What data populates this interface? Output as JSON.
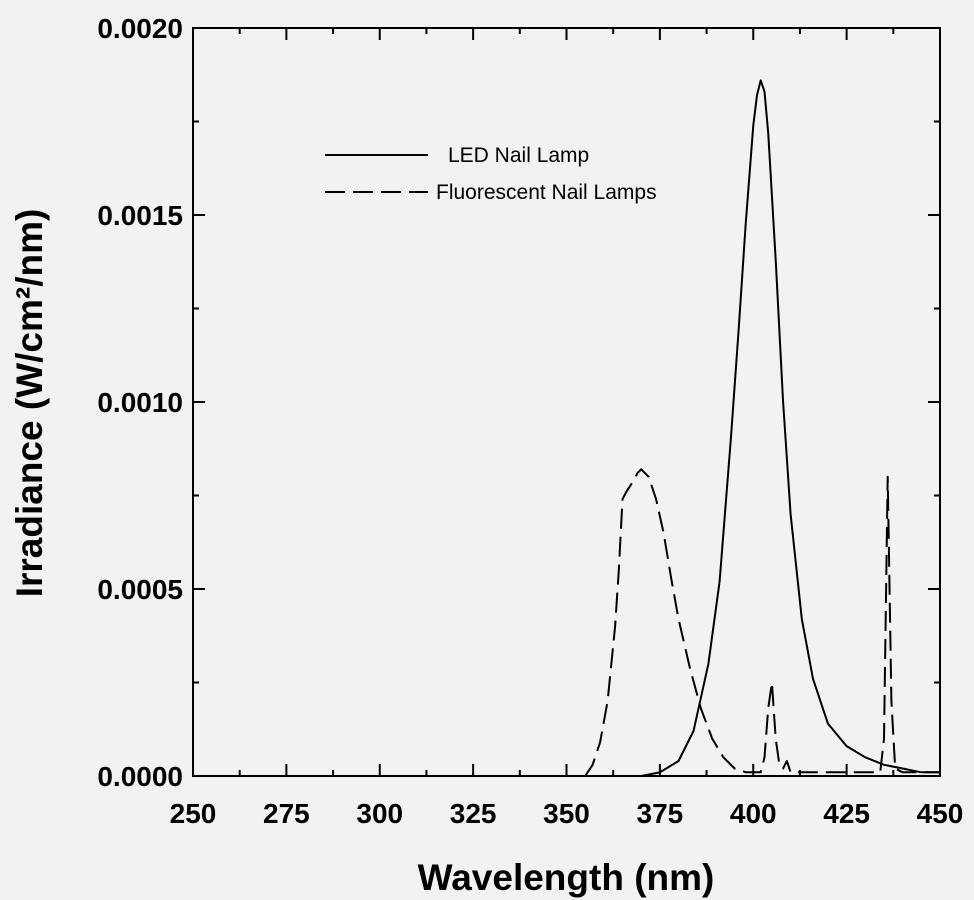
{
  "chart_data": {
    "type": "line",
    "xlabel": "Wavelength (nm)",
    "ylabel": "Irradiance (W/cm²/nm)",
    "xlim": [
      250,
      450
    ],
    "ylim": [
      0,
      0.002
    ],
    "x_ticks": [
      "250",
      "275",
      "300",
      "325",
      "350",
      "375",
      "400",
      "425",
      "450"
    ],
    "y_ticks": [
      "0.0000",
      "0.0005",
      "0.0010",
      "0.0015",
      "0.0020"
    ],
    "legend_position": "top-center",
    "grid": false,
    "series": [
      {
        "name": "LED Nail Lamp",
        "style": "solid",
        "x": [
          360,
          370,
          375,
          380,
          384,
          388,
          391,
          394,
          396,
          398,
          400,
          401,
          402,
          403,
          404,
          406,
          408,
          410,
          413,
          416,
          420,
          425,
          430,
          435,
          440,
          445,
          450
        ],
        "y": [
          0.0,
          0.0,
          1e-05,
          4e-05,
          0.00012,
          0.0003,
          0.00052,
          0.0009,
          0.00118,
          0.00148,
          0.00174,
          0.00182,
          0.00186,
          0.00183,
          0.00172,
          0.00138,
          0.001,
          0.0007,
          0.00042,
          0.00026,
          0.00014,
          8e-05,
          5e-05,
          3e-05,
          2e-05,
          1e-05,
          1e-05
        ]
      },
      {
        "name": "Fluorescent Nail Lamps",
        "style": "dashed",
        "x": [
          355,
          357,
          359,
          361,
          363,
          364,
          365,
          366,
          368,
          369,
          370,
          372,
          374,
          376,
          378,
          380,
          383,
          386,
          389,
          392,
          395,
          398,
          400,
          402,
          403,
          404,
          405,
          406,
          407,
          408,
          409,
          410,
          412,
          415,
          420,
          425,
          430,
          434,
          435,
          436,
          437,
          438,
          440,
          445,
          450
        ],
        "y": [
          0.0,
          3e-05,
          9e-05,
          0.0002,
          0.0004,
          0.00055,
          0.00074,
          0.00076,
          0.00079,
          0.00081,
          0.00082,
          0.0008,
          0.00074,
          0.00065,
          0.00053,
          0.00042,
          0.00029,
          0.00018,
          0.0001,
          5e-05,
          2e-05,
          1e-05,
          1e-05,
          1e-05,
          5e-05,
          0.00018,
          0.00025,
          0.0001,
          3e-05,
          2e-05,
          4e-05,
          1e-05,
          1e-05,
          1e-05,
          1e-05,
          1e-05,
          1e-05,
          1e-05,
          0.0001,
          0.0008,
          0.0002,
          2e-05,
          1e-05,
          1e-05,
          1e-05
        ]
      }
    ]
  }
}
